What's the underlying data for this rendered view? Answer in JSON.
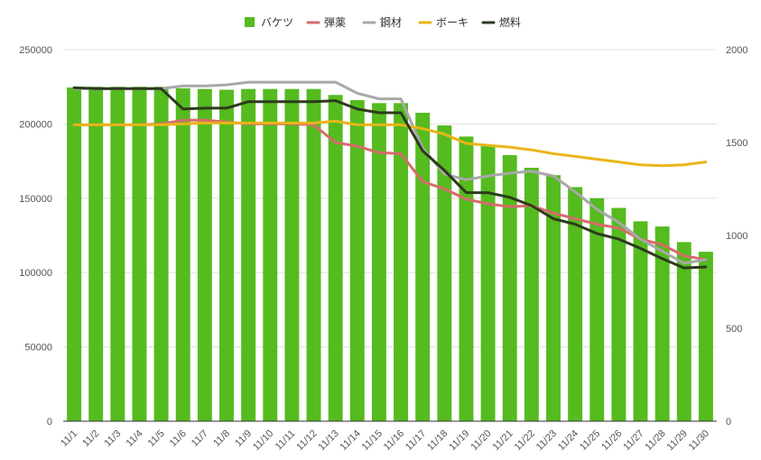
{
  "chart_data": {
    "type": "bar",
    "categories": [
      "11/1",
      "11/2",
      "11/3",
      "11/4",
      "11/5",
      "11/6",
      "11/7",
      "11/8",
      "11/9",
      "11/10",
      "11/11",
      "11/12",
      "11/13",
      "11/14",
      "11/15",
      "11/16",
      "11/17",
      "11/18",
      "11/19",
      "11/20",
      "11/21",
      "11/22",
      "11/23",
      "11/24",
      "11/25",
      "11/26",
      "11/27",
      "11/28",
      "11/29",
      "11/30"
    ],
    "bar_series": {
      "name": "バケツ",
      "color": "#55bb1f",
      "axis": "left",
      "values": [
        224500,
        225000,
        225000,
        225000,
        225000,
        224000,
        223500,
        223000,
        223500,
        223500,
        223500,
        223500,
        219500,
        216000,
        214000,
        214000,
        207500,
        199000,
        191500,
        185000,
        179000,
        170500,
        165500,
        157500,
        150000,
        143500,
        134500,
        131000,
        120500,
        114000
      ]
    },
    "line_series": [
      {
        "name": "弾薬",
        "color": "#d66b6b",
        "axis": "right",
        "values": [
          1595,
          1595,
          1595,
          1595,
          1600,
          1620,
          1620,
          1610,
          1600,
          1600,
          1600,
          1595,
          1500,
          1480,
          1445,
          1440,
          1290,
          1250,
          1195,
          1170,
          1155,
          1160,
          1120,
          1090,
          1060,
          1040,
          980,
          950,
          890,
          870
        ]
      },
      {
        "name": "鋼材",
        "color": "#a8a8a8",
        "axis": "right",
        "values": [
          1790,
          1790,
          1790,
          1790,
          1790,
          1805,
          1805,
          1810,
          1825,
          1825,
          1825,
          1825,
          1825,
          1765,
          1735,
          1735,
          1470,
          1330,
          1300,
          1320,
          1335,
          1345,
          1320,
          1235,
          1140,
          1070,
          980,
          915,
          850,
          870
        ]
      },
      {
        "name": "ボーキ",
        "color": "#e8b519",
        "axis": "right",
        "values": [
          1595,
          1595,
          1595,
          1595,
          1595,
          1600,
          1605,
          1605,
          1605,
          1605,
          1605,
          1605,
          1615,
          1595,
          1595,
          1595,
          1575,
          1545,
          1495,
          1485,
          1475,
          1460,
          1440,
          1425,
          1410,
          1395,
          1380,
          1375,
          1380,
          1395
        ]
      },
      {
        "name": "燃料",
        "color": "#2d3a1e",
        "axis": "right",
        "values": [
          1795,
          1790,
          1790,
          1790,
          1790,
          1680,
          1685,
          1685,
          1720,
          1720,
          1720,
          1720,
          1725,
          1680,
          1660,
          1660,
          1455,
          1350,
          1230,
          1230,
          1205,
          1160,
          1090,
          1060,
          1010,
          980,
          930,
          875,
          825,
          830
        ]
      }
    ],
    "y_left": {
      "min": 0,
      "max": 250000,
      "ticks": [
        "0",
        "50000",
        "100000",
        "150000",
        "200000",
        "250000"
      ]
    },
    "y_right": {
      "min": 0,
      "max": 2000,
      "ticks": [
        "0",
        "500",
        "1000",
        "1500",
        "2000"
      ]
    },
    "grid": true,
    "legend_position": "top-center",
    "title": "",
    "xlabel": "",
    "ylabel": ""
  }
}
